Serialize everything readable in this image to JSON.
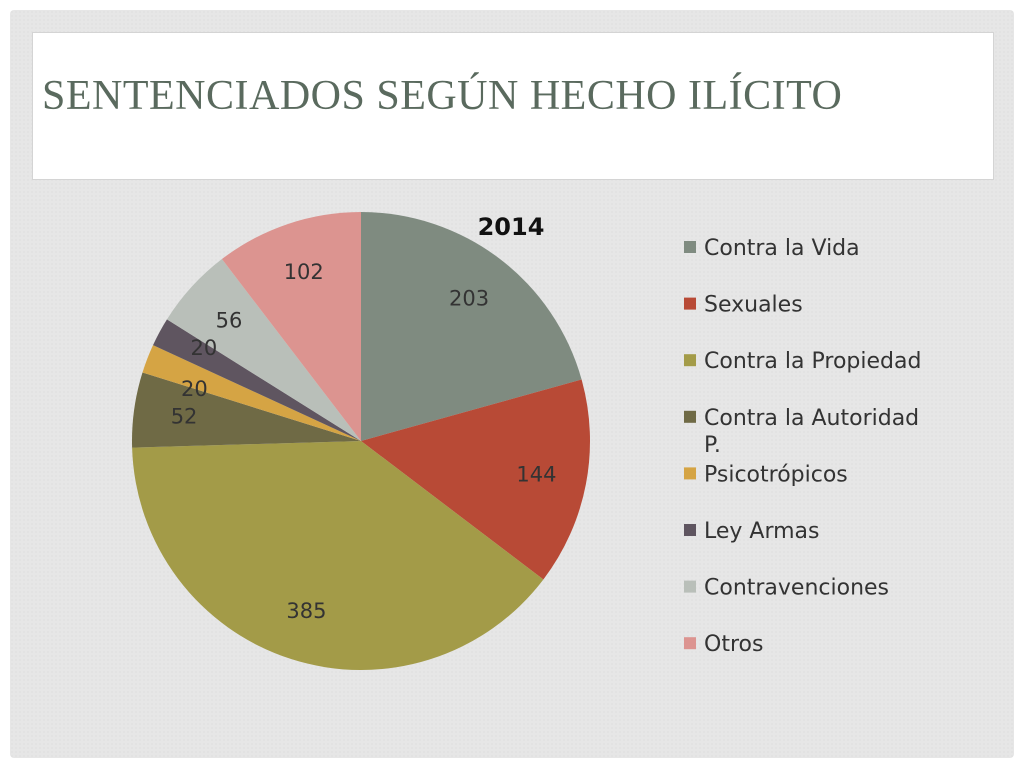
{
  "slide": {
    "title": "SENTENCIADOS SEGÚN HECHO ILÍCITO"
  },
  "chart_data": {
    "type": "pie",
    "title": "2014",
    "categories": [
      "Contra la Vida",
      "Sexuales",
      "Contra la Propiedad",
      "Contra la Autoridad P.",
      "Psicotrópicos",
      "Ley Armas",
      "Contravenciones",
      "Otros"
    ],
    "values": [
      203,
      144,
      385,
      52,
      20,
      20,
      56,
      102
    ],
    "colors": [
      "#7f8b80",
      "#b84a36",
      "#a39b48",
      "#6f6a45",
      "#d5a444",
      "#5f5560",
      "#b9bfb9",
      "#dc9490"
    ],
    "legend": "right",
    "start": "top",
    "direction": "clockwise"
  }
}
